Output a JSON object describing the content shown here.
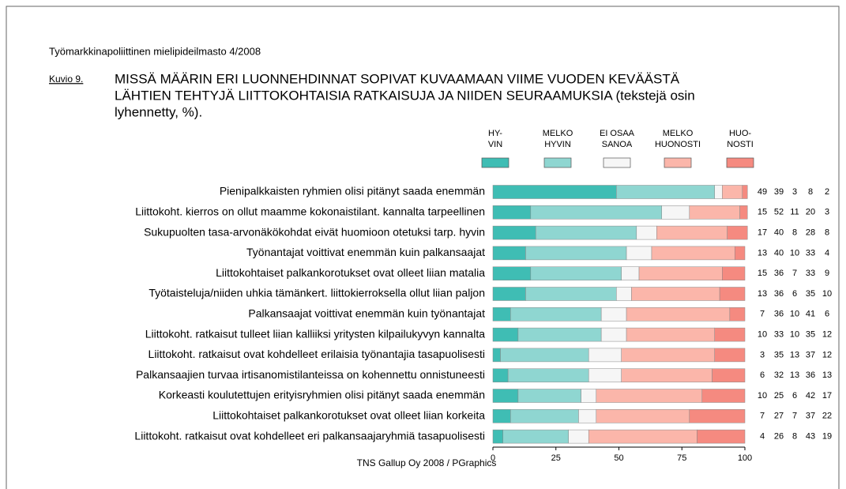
{
  "chart_data": {
    "type": "stacked_hbar",
    "header": "Työmarkkinapoliittinen mielipideilmasto 4/2008",
    "figure_label": "Kuvio 9.",
    "title": [
      "MISSÄ MÄÄRIN ERI LUONNEHDINNAT SOPIVAT KUVAAMAAN VIIME VUODEN KEVÄÄSTÄ",
      "LÄHTIEN TEHTYJÄ LIITTOKOHTAISIA RATKAISUJA JA NIIDEN SEURAAMUKSIA (tekstejä osin",
      "lyhennetty, %)."
    ],
    "source": "TNS Gallup Oy 2008 / PGraphics",
    "categories": [
      "Pienipalkkaisten ryhmien olisi pitänyt saada enemmän",
      "Liittokoht. kierros on ollut maamme kokonaistilant. kannalta tarpeellinen",
      "Sukupuolten tasa-arvonäkökohdat eivät huomioon otetuksi tarp. hyvin",
      "Työnantajat voittivat enemmän kuin palkansaajat",
      "Liittokohtaiset palkankorotukset ovat olleet liian matalia",
      "Työtaisteluja/niiden uhkia tämänkert. liittokierroksella ollut liian paljon",
      "Palkansaajat voittivat enemmän kuin työnantajat",
      "Liittokoht. ratkaisut tulleet liian kalliiksi yritysten kilpailukyvyn kannalta",
      "Liittokoht. ratkaisut ovat kohdelleet erilaisia työnantajia tasapuolisesti",
      "Palkansaajien turvaa irtisanomistilanteissa on kohennettu onnistuneesti",
      "Korkeasti koulutettujen erityisryhmien olisi pitänyt saada enemmän",
      "Liittokohtaiset palkankorotukset ovat olleet liian korkeita",
      "Liittokoht. ratkaisut ovat kohdelleet eri palkansaajaryhmiä tasapuolisesti"
    ],
    "series": [
      {
        "name": "HY-\nVIN",
        "color": "#3fbdb4",
        "values": [
          49,
          15,
          17,
          13,
          15,
          13,
          7,
          10,
          3,
          6,
          10,
          7,
          4
        ]
      },
      {
        "name": "MELKO\nHYVIN",
        "color": "#8fd6d1",
        "values": [
          39,
          52,
          40,
          40,
          36,
          36,
          36,
          33,
          35,
          32,
          25,
          27,
          26
        ]
      },
      {
        "name": "EI OSAA\nSANOA",
        "color": "#f6f6f6",
        "values": [
          3,
          11,
          8,
          10,
          7,
          6,
          10,
          10,
          13,
          13,
          6,
          7,
          8
        ]
      },
      {
        "name": "MELKO\nHUONOSTI",
        "color": "#fbb6aa",
        "values": [
          8,
          20,
          28,
          33,
          33,
          35,
          41,
          35,
          37,
          36,
          42,
          37,
          43
        ]
      },
      {
        "name": "HUO-\nNOSTI",
        "color": "#f58a80",
        "values": [
          2,
          3,
          8,
          4,
          9,
          10,
          6,
          12,
          12,
          13,
          17,
          22,
          19
        ]
      }
    ],
    "xlim": [
      0,
      100
    ],
    "xticks": [
      0,
      25,
      50,
      75,
      100
    ]
  }
}
